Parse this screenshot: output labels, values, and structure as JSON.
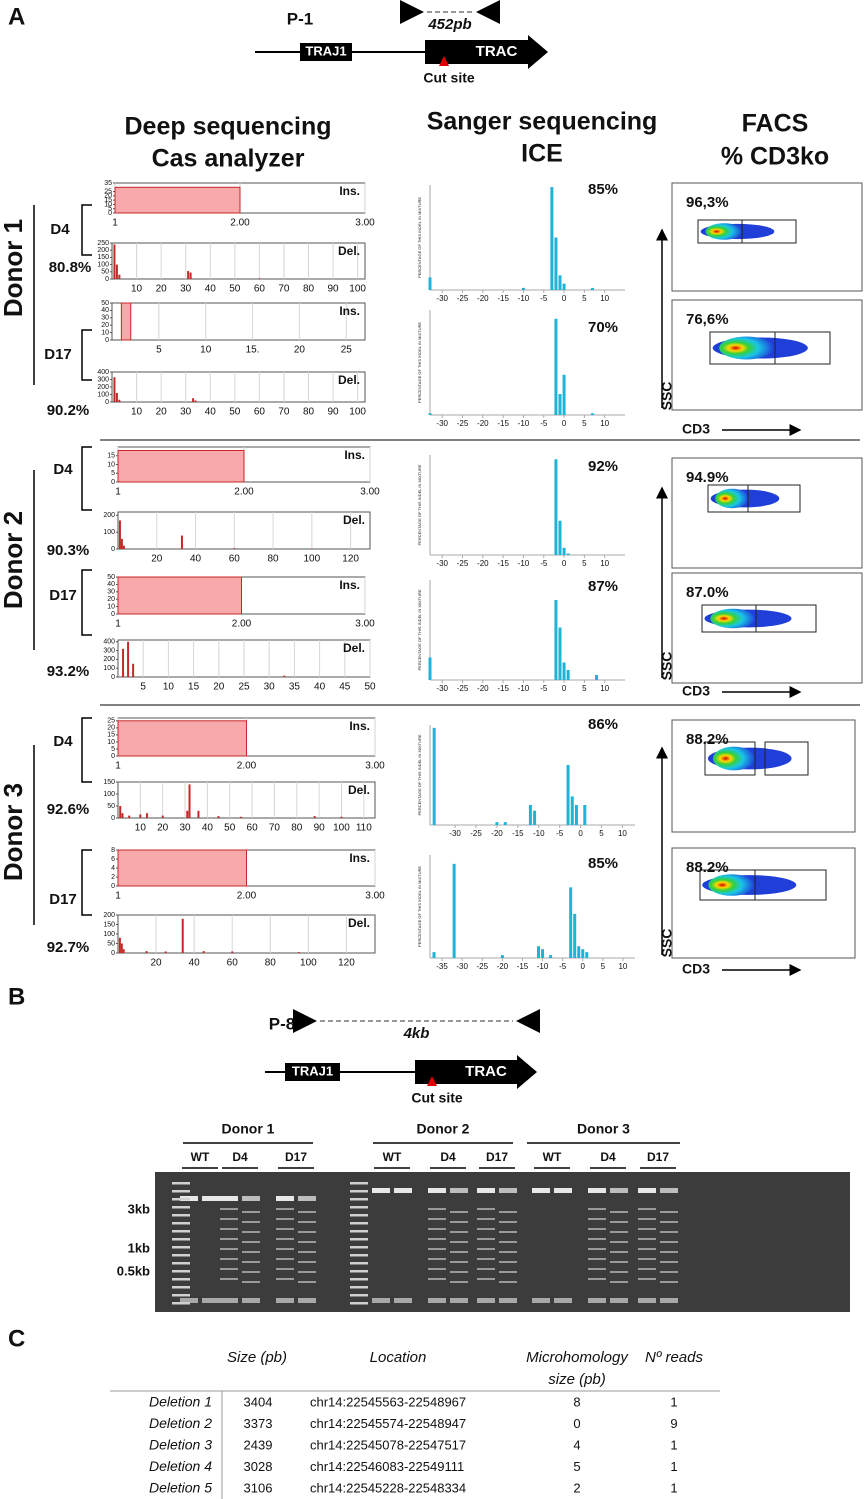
{
  "panel_a": {
    "label": "A",
    "diagram": {
      "primer": "P-1",
      "amplicon": "452pb",
      "genes": [
        "TRAJ1",
        "TRAC"
      ],
      "cut": "Cut site"
    },
    "headers": [
      [
        "Deep sequencing",
        "Cas analyzer"
      ],
      [
        "Sanger sequencing",
        "ICE"
      ],
      [
        "FACS",
        "% CD3ko"
      ]
    ],
    "ice_y_label": "PERCENTAGE OF THIS INDEL IN MIXTURE",
    "donors": [
      {
        "name": "Donor 1",
        "ssc": "SSC",
        "cd3": "CD3",
        "timepoints": [
          {
            "name": "D4",
            "efficiency": "80.8%",
            "facs": "96,3%",
            "ins": {
              "label": "Ins.",
              "xlim": [
                1,
                3
              ],
              "ylim": [
                0,
                35
              ],
              "xticks": [
                1,
                {
                  "value": 2,
                  "label": "2.00"
                },
                {
                  "value": 3,
                  "label": "3.00"
                }
              ],
              "yticks": [
                0,
                5,
                10,
                15,
                20,
                25,
                35
              ],
              "bins": [
                1,
                2
              ],
              "values": [
                30
              ]
            },
            "del": {
              "label": "Del.",
              "xlim": [
                0,
                103
              ],
              "ylim": [
                0,
                250
              ],
              "xticks": [
                10,
                20,
                30,
                40,
                50,
                60,
                70,
                80,
                90,
                100
              ],
              "yticks": [
                0,
                50,
                100,
                150,
                200,
                250
              ],
              "x": [
                1,
                2,
                3,
                31,
                32,
                60
              ],
              "values": [
                240,
                100,
                30,
                55,
                45,
                5
              ]
            },
            "ice": {
              "percent": "85%",
              "xlim": [
                -33,
                15
              ],
              "ylim": [
                0,
                50
              ],
              "xticks": [
                -30,
                -25,
                -20,
                -15,
                -10,
                -5,
                0,
                5,
                10
              ],
              "x": [
                -33,
                -10,
                -3,
                -2,
                -1,
                0,
                7
              ],
              "values": [
                6,
                1,
                49,
                25,
                7,
                3,
                1
              ]
            }
          },
          {
            "name": "D17",
            "efficiency": "90.2%",
            "facs": "76,6%",
            "ins": {
              "label": "Ins.",
              "xlim": [
                0,
                27
              ],
              "ylim": [
                0,
                50
              ],
              "xticks": [
                5,
                10,
                {
                  "value": 15,
                  "label": "15."
                },
                20,
                25
              ],
              "yticks": [
                0,
                10,
                20,
                30,
                40,
                50
              ],
              "bins": [
                1,
                2
              ],
              "values": [
                50
              ]
            },
            "del": {
              "label": "Del.",
              "xlim": [
                0,
                103
              ],
              "ylim": [
                0,
                400
              ],
              "xticks": [
                10,
                20,
                30,
                40,
                50,
                60,
                70,
                80,
                90,
                100
              ],
              "yticks": [
                0,
                100,
                200,
                300,
                400
              ],
              "x": [
                1,
                2,
                3,
                33,
                34
              ],
              "values": [
                330,
                120,
                30,
                50,
                20
              ]
            },
            "ice": {
              "percent": "70%",
              "xlim": [
                -33,
                15
              ],
              "ylim": [
                0,
                60
              ],
              "xticks": [
                -30,
                -25,
                -20,
                -15,
                -10,
                -5,
                0,
                5,
                10
              ],
              "x": [
                -33,
                -2,
                -1,
                0,
                7
              ],
              "values": [
                1,
                55,
                12,
                23,
                1
              ]
            }
          }
        ]
      },
      {
        "name": "Donor 2",
        "ssc": "SSC",
        "cd3": "CD3",
        "timepoints": [
          {
            "name": "D4",
            "efficiency": "90.3%",
            "facs": "94.9%",
            "ins": {
              "label": "Ins.",
              "xlim": [
                1,
                3
              ],
              "ylim": [
                0,
                20
              ],
              "xticks": [
                1,
                {
                  "value": 2,
                  "label": "2.00"
                },
                {
                  "value": 3,
                  "label": "3.00"
                }
              ],
              "yticks": [
                0,
                5,
                10,
                15
              ],
              "bins": [
                1,
                2
              ],
              "values": [
                18
              ]
            },
            "del": {
              "label": "Del.",
              "xlim": [
                0,
                130
              ],
              "ylim": [
                0,
                220
              ],
              "xticks": [
                20,
                40,
                60,
                80,
                100,
                120
              ],
              "yticks": [
                0,
                100,
                200
              ],
              "x": [
                1,
                2,
                3,
                33,
                60,
                100
              ],
              "values": [
                170,
                60,
                20,
                80,
                5,
                3
              ]
            },
            "ice": {
              "percent": "92%",
              "xlim": [
                -33,
                15
              ],
              "ylim": [
                0,
                70
              ],
              "xticks": [
                -30,
                -25,
                -20,
                -15,
                -10,
                -5,
                0,
                5,
                10
              ],
              "x": [
                -2,
                -1,
                0,
                1
              ],
              "values": [
                67,
                24,
                5,
                1
              ]
            }
          },
          {
            "name": "D17",
            "efficiency": "93.2%",
            "facs": "87.0%",
            "ins": {
              "label": "Ins.",
              "xlim": [
                1,
                3
              ],
              "ylim": [
                0,
                50
              ],
              "xticks": [
                1,
                {
                  "value": 2,
                  "label": "2.00"
                },
                {
                  "value": 3,
                  "label": "3.00"
                }
              ],
              "yticks": [
                0,
                10,
                20,
                30,
                40,
                50
              ],
              "bins": [
                1,
                2
              ],
              "values": [
                50
              ]
            },
            "del": {
              "label": "Del.",
              "xlim": [
                0,
                50
              ],
              "ylim": [
                0,
                420
              ],
              "xticks": [
                5,
                10,
                15,
                20,
                25,
                30,
                35,
                40,
                45,
                50
              ],
              "yticks": [
                0,
                100,
                200,
                300,
                400
              ],
              "x": [
                1,
                2,
                3,
                33
              ],
              "values": [
                320,
                400,
                150,
                15
              ]
            },
            "ice": {
              "percent": "87%",
              "xlim": [
                -33,
                15
              ],
              "ylim": [
                0,
                40
              ],
              "xticks": [
                -30,
                -25,
                -20,
                -15,
                -10,
                -5,
                0,
                5,
                10
              ],
              "x": [
                -33,
                -2,
                -1,
                0,
                1,
                8
              ],
              "values": [
                9,
                32,
                21,
                7,
                4,
                2
              ]
            }
          }
        ]
      },
      {
        "name": "Donor 3",
        "ssc": "SSC",
        "cd3": "CD3",
        "timepoints": [
          {
            "name": "D4",
            "efficiency": "92.6%",
            "facs": "88.2%",
            "ins": {
              "label": "Ins.",
              "xlim": [
                1,
                3
              ],
              "ylim": [
                0,
                27
              ],
              "xticks": [
                1,
                {
                  "value": 2,
                  "label": "2.00"
                },
                {
                  "value": 3,
                  "label": "3.00"
                }
              ],
              "yticks": [
                0,
                5,
                10,
                15,
                20,
                25
              ],
              "bins": [
                1,
                2
              ],
              "values": [
                25
              ]
            },
            "del": {
              "label": "Del.",
              "xlim": [
                0,
                115
              ],
              "ylim": [
                0,
                150
              ],
              "xticks": [
                10,
                20,
                30,
                40,
                50,
                60,
                70,
                80,
                90,
                100,
                110
              ],
              "yticks": [
                0,
                50,
                100,
                150
              ],
              "x": [
                1,
                2,
                5,
                10,
                13,
                20,
                31,
                32,
                36,
                45,
                55,
                88,
                100
              ],
              "values": [
                50,
                20,
                10,
                15,
                20,
                10,
                30,
                140,
                30,
                8,
                5,
                8,
                5
              ]
            },
            "ice": {
              "percent": "86%",
              "xlim": [
                -36,
                13
              ],
              "ylim": [
                0,
                35
              ],
              "xticks": [
                -30,
                -25,
                -20,
                -15,
                -10,
                -5,
                0,
                5,
                10
              ],
              "x": [
                -35,
                -20,
                -18,
                -12,
                -11,
                -3,
                -2,
                -1,
                1
              ],
              "values": [
                34,
                1,
                1,
                7,
                5,
                21,
                10,
                7,
                7
              ]
            }
          },
          {
            "name": "D17",
            "efficiency": "92.7%",
            "facs": "88.2%",
            "ins": {
              "label": "Ins.",
              "xlim": [
                1,
                3
              ],
              "ylim": [
                0,
                8
              ],
              "xticks": [
                1,
                {
                  "value": 2,
                  "label": "2.00"
                },
                {
                  "value": 3,
                  "label": "3.00"
                }
              ],
              "yticks": [
                0,
                2,
                4,
                6,
                8
              ],
              "bins": [
                1,
                2
              ],
              "values": [
                8
              ]
            },
            "del": {
              "label": "Del.",
              "xlim": [
                0,
                135
              ],
              "ylim": [
                0,
                200
              ],
              "xticks": [
                20,
                40,
                60,
                80,
                100,
                120
              ],
              "yticks": [
                0,
                50,
                100,
                150,
                200
              ],
              "x": [
                1,
                2,
                3,
                15,
                25,
                34,
                45,
                60,
                95
              ],
              "values": [
                80,
                50,
                20,
                10,
                8,
                180,
                10,
                8,
                5
              ]
            },
            "ice": {
              "percent": "85%",
              "xlim": [
                -38,
                13
              ],
              "ylim": [
                0,
                35
              ],
              "xticks": [
                -35,
                -30,
                -25,
                -20,
                -15,
                -10,
                -5,
                0,
                5,
                10
              ],
              "x": [
                -37,
                -32,
                -20,
                -11,
                -10,
                -8,
                -3,
                -2,
                -1,
                0,
                1
              ],
              "values": [
                2,
                32,
                1,
                4,
                3,
                1,
                24,
                15,
                4,
                3,
                2
              ]
            }
          }
        ]
      }
    ]
  },
  "panel_b": {
    "label": "B",
    "diagram": {
      "primer": "P-8",
      "amplicon": "4kb",
      "genes": [
        "TRAJ1",
        "TRAC"
      ],
      "cut": "Cut site"
    },
    "gel": {
      "donors": [
        {
          "name": "Donor 1",
          "lanes": [
            "WT",
            "D4",
            "D17"
          ]
        },
        {
          "name": "Donor 2",
          "lanes": [
            "WT",
            "D4",
            "D17"
          ]
        },
        {
          "name": "Donor 3",
          "lanes": [
            "WT",
            "D4",
            "D17"
          ]
        }
      ],
      "sizes": [
        "3kb",
        "1kb",
        "0.5kb"
      ]
    }
  },
  "panel_c": {
    "label": "C",
    "table": {
      "header": {
        "size": "Size (pb)",
        "location": "Location",
        "microhomology": [
          "Microhomology",
          "size (pb)"
        ],
        "reads": "Nº reads"
      },
      "rows": [
        [
          "Deletion 1",
          3404,
          "chr14:22545563-22548967",
          8,
          1
        ],
        [
          "Deletion 2",
          3373,
          "chr14:22545574-22548947",
          0,
          9
        ],
        [
          "Deletion 3",
          2439,
          "chr14:22545078-22547517",
          4,
          1
        ],
        [
          "Deletion 4",
          3028,
          "chr14:22546083-22549111",
          5,
          1
        ],
        [
          "Deletion 5",
          3106,
          "chr14:22545228-22548334",
          2,
          1
        ]
      ]
    }
  }
}
